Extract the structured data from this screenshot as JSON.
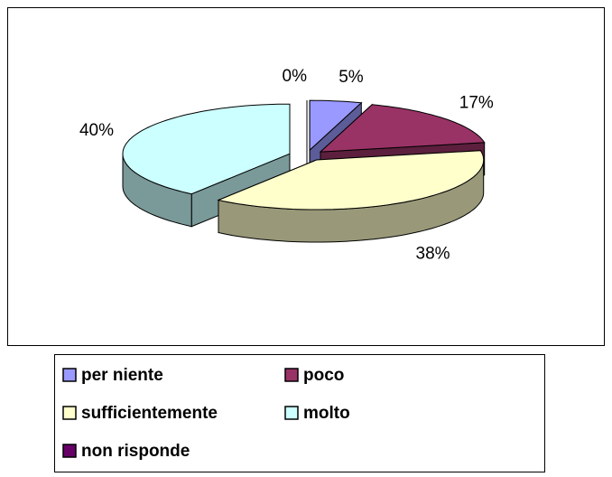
{
  "chart_data": {
    "type": "pie3d",
    "categories": [
      "per niente",
      "poco",
      "sufficientemente",
      "molto",
      "non risponde"
    ],
    "values": [
      5,
      17,
      38,
      40,
      0
    ],
    "value_labels": [
      "5%",
      "17%",
      "38%",
      "40%",
      "0%"
    ],
    "colors": [
      "#9999ff",
      "#993366",
      "#ffffcc",
      "#ccffff",
      "#660066"
    ],
    "legend": "bottom"
  }
}
